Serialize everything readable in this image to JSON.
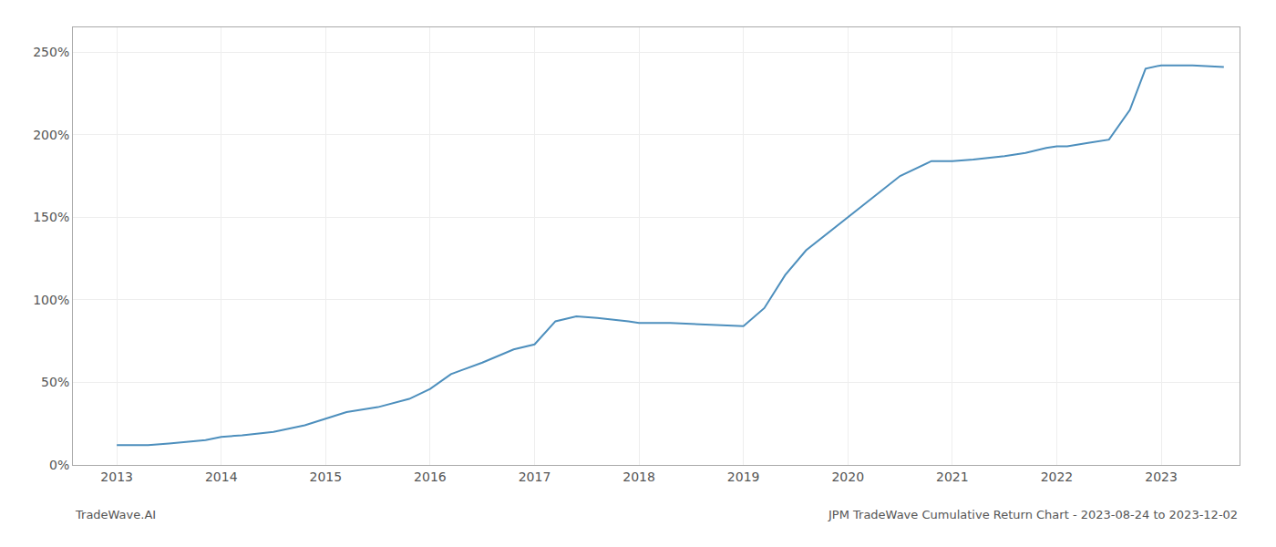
{
  "chart_data": {
    "type": "line",
    "title": "JPM TradeWave Cumulative Return Chart - 2023-08-24 to 2023-12-02",
    "annotations": [
      {
        "text": "TradeWave.AI"
      }
    ],
    "color": "#4d8fbd",
    "x": [
      2013.0,
      2013.15,
      2013.3,
      2013.5,
      2013.7,
      2013.85,
      2014.0,
      2014.2,
      2014.5,
      2014.8,
      2015.0,
      2015.2,
      2015.5,
      2015.8,
      2016.0,
      2016.2,
      2016.5,
      2016.8,
      2017.0,
      2017.2,
      2017.4,
      2017.6,
      2017.9,
      2018.0,
      2018.3,
      2018.6,
      2018.9,
      2019.0,
      2019.2,
      2019.4,
      2019.6,
      2019.8,
      2020.0,
      2020.2,
      2020.5,
      2020.8,
      2021.0,
      2021.2,
      2021.5,
      2021.7,
      2021.9,
      2022.0,
      2022.1,
      2022.3,
      2022.5,
      2022.7,
      2022.85,
      2023.0,
      2023.3,
      2023.6
    ],
    "values": [
      12,
      12,
      12,
      13,
      14,
      15,
      17,
      18,
      20,
      24,
      28,
      32,
      35,
      40,
      46,
      55,
      62,
      70,
      73,
      87,
      90,
      89,
      87,
      86,
      86,
      85,
      84,
      84,
      95,
      115,
      130,
      140,
      150,
      160,
      175,
      184,
      184,
      185,
      187,
      189,
      192,
      193,
      193,
      195,
      197,
      215,
      240,
      242,
      242,
      241
    ],
    "xlim": [
      2012.58,
      2023.75
    ],
    "xticks": [
      2013,
      2014,
      2015,
      2016,
      2017,
      2018,
      2019,
      2020,
      2021,
      2022,
      2023
    ],
    "ylim": [
      0,
      265
    ],
    "yticks": [
      {
        "value": 0,
        "label": "0%"
      },
      {
        "value": 50,
        "label": "50%"
      },
      {
        "value": 100,
        "label": "100%"
      },
      {
        "value": 150,
        "label": "150%"
      },
      {
        "value": 200,
        "label": "200%"
      },
      {
        "value": 250,
        "label": "250%"
      }
    ],
    "grid": true
  }
}
